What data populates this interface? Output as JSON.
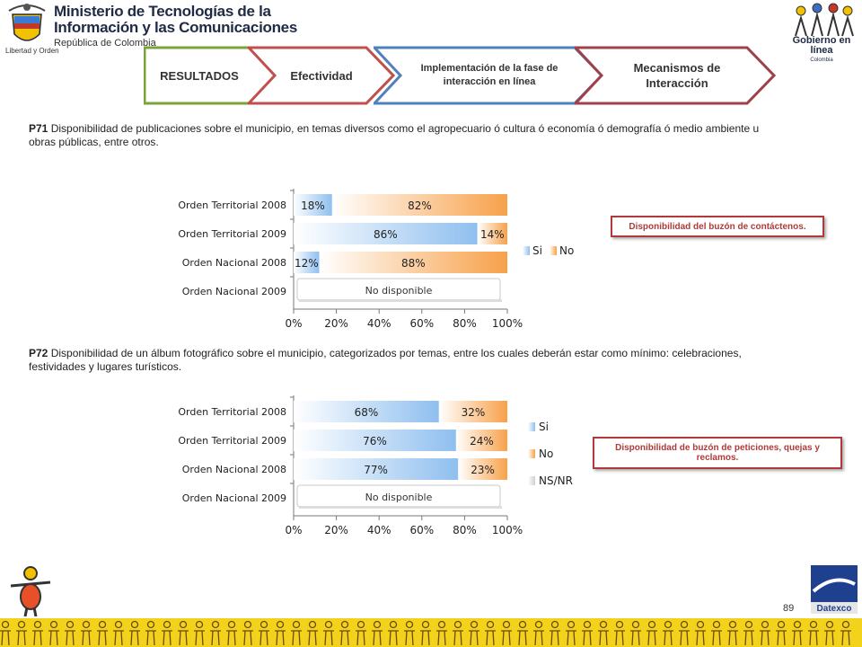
{
  "header": {
    "ministry_line1": "Ministerio de Tecnologías de la",
    "ministry_line2": "Información y las Comunicaciones",
    "ministry_line3": "República de Colombia",
    "shield_caption": "Libertad y Orden",
    "gel_title": "Gobierno en línea",
    "gel_sub": "Colombia"
  },
  "nav": {
    "resultados": "RESULTADOS",
    "efectividad": "Efectividad",
    "implementacion": "Implementación de la fase de interacción en línea",
    "mecanismos": "Mecanismos de Interacción"
  },
  "p71": {
    "code": "P71",
    "text": " Disponibilidad de publicaciones sobre el municipio, en temas diversos como el agropecuario ó cultura ó economía ó demografía ó medio ambiente u obras públicas, entre otros.",
    "note": "Disponibilidad del buzón de contáctenos."
  },
  "p72": {
    "code": "P72",
    "text": " Disponibilidad de un álbum fotográfico sobre el municipio, categorizados por temas, entre los cuales deberán estar como mínimo: celebraciones, festividades y lugares turísticos.",
    "note": "Disponibilidad de buzón de peticiones, quejas y reclamos."
  },
  "page_number": "89",
  "datexco": "Datexco",
  "colors": {
    "si": "#8fbfef",
    "no": "#f7a14a",
    "nsnr": "#cfcfcf",
    "note_border": "#b03a3a"
  },
  "chart_data": [
    {
      "type": "bar",
      "orientation": "horizontal",
      "stacked": true,
      "categories": [
        "Orden Territorial 2008",
        "Orden Territorial 2009",
        "Orden Nacional 2008",
        "Orden Nacional 2009"
      ],
      "series": [
        {
          "name": "Si",
          "values": [
            18,
            86,
            12,
            null
          ]
        },
        {
          "name": "No",
          "values": [
            82,
            14,
            88,
            null
          ]
        }
      ],
      "data_labels": [
        [
          "18%",
          "86%",
          "12%",
          ""
        ],
        [
          "82%",
          "14%",
          "88%",
          ""
        ]
      ],
      "ticks": [
        "0%",
        "20%",
        "40%",
        "60%",
        "80%",
        "100%"
      ],
      "xlim": [
        0,
        100
      ],
      "unavailable_label": "No disponible",
      "legend": [
        "Si",
        "No"
      ],
      "legend_position": "right"
    },
    {
      "type": "bar",
      "orientation": "horizontal",
      "stacked": true,
      "categories": [
        "Orden Territorial 2008",
        "Orden Territorial 2009",
        "Orden Nacional 2008",
        "Orden Nacional 2009"
      ],
      "series": [
        {
          "name": "Si",
          "values": [
            68,
            76,
            77,
            null
          ]
        },
        {
          "name": "No",
          "values": [
            32,
            24,
            23,
            null
          ]
        },
        {
          "name": "NS/NR",
          "values": [
            0,
            0,
            0,
            null
          ]
        }
      ],
      "data_labels": [
        [
          "68%",
          "76%",
          "77%",
          ""
        ],
        [
          "32%",
          "24%",
          "23%",
          ""
        ],
        [
          "",
          "",
          "",
          ""
        ]
      ],
      "ticks": [
        "0%",
        "20%",
        "40%",
        "60%",
        "80%",
        "100%"
      ],
      "xlim": [
        0,
        100
      ],
      "unavailable_label": "No disponible",
      "legend": [
        "Si",
        "No",
        "NS/NR"
      ],
      "legend_position": "right"
    }
  ]
}
